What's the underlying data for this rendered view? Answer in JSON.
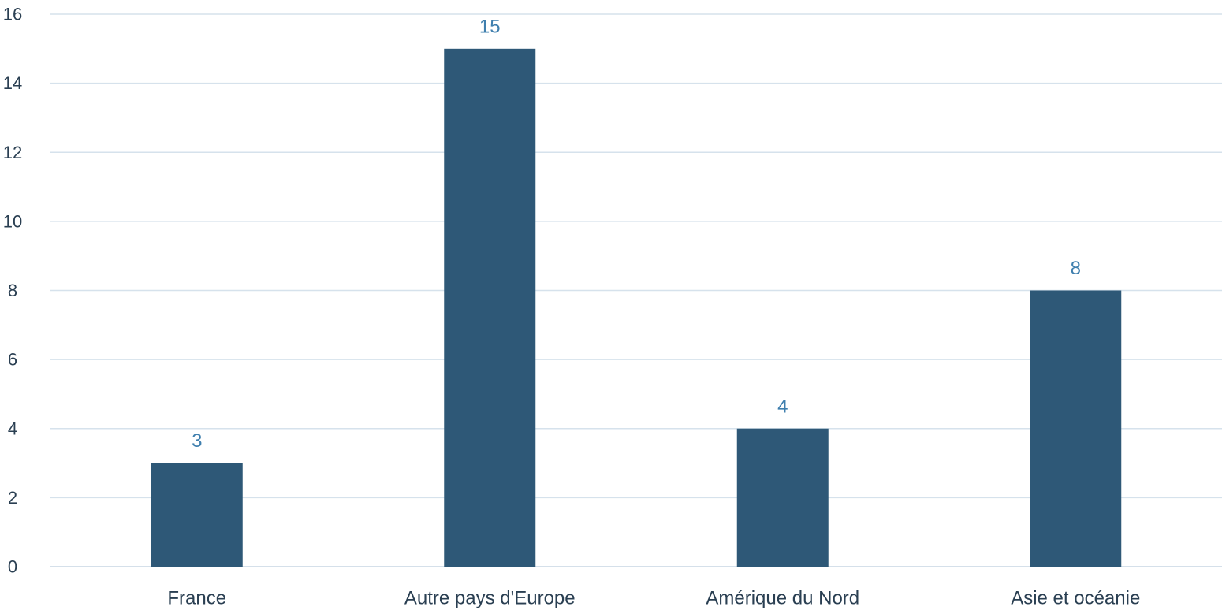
{
  "chart_data": {
    "type": "bar",
    "title": "",
    "xlabel": "",
    "ylabel": "",
    "categories": [
      "France",
      "Autre pays d'Europe",
      "Amérique du Nord",
      "Asie et océanie"
    ],
    "values": [
      3,
      15,
      4,
      8
    ],
    "data_labels": [
      "3",
      "15",
      "4",
      "8"
    ],
    "ylim": [
      0,
      16
    ],
    "yticks": [
      0,
      2,
      4,
      6,
      8,
      10,
      12,
      14,
      16
    ],
    "ytick_labels": [
      "0",
      "2",
      "4",
      "6",
      "8",
      "10",
      "12",
      "14",
      "16"
    ],
    "grid": true,
    "legend": "none",
    "colors": {
      "bar": "#2e5877",
      "data_label": "#3f7fae"
    }
  }
}
